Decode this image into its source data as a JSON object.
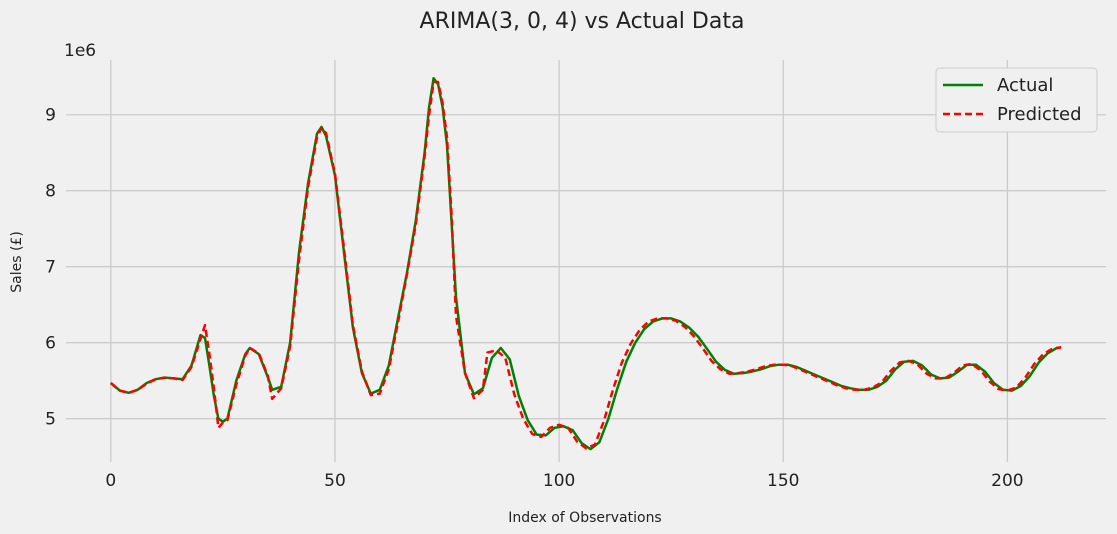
{
  "chart_data": {
    "type": "line",
    "title": "ARIMA(3, 0, 4) vs Actual Data",
    "xlabel": "Index of Observations",
    "ylabel": "Sales (£)",
    "offset_label": "1e6",
    "xlim": [
      -10,
      222
    ],
    "ylim": [
      4430000,
      9720000
    ],
    "xticks": [
      0,
      50,
      100,
      150,
      200
    ],
    "yticks": [
      5000000,
      6000000,
      7000000,
      8000000,
      9000000
    ],
    "ytick_labels": [
      "5",
      "6",
      "7",
      "8",
      "9"
    ],
    "grid": true,
    "legend": "top-right",
    "series": [
      {
        "name": "Actual",
        "color": "#008000",
        "style": "solid",
        "points": [
          [
            0,
            5470000
          ],
          [
            2,
            5370000
          ],
          [
            4,
            5340000
          ],
          [
            6,
            5380000
          ],
          [
            8,
            5470000
          ],
          [
            10,
            5520000
          ],
          [
            12,
            5540000
          ],
          [
            14,
            5530000
          ],
          [
            16,
            5520000
          ],
          [
            18,
            5700000
          ],
          [
            20,
            6100000
          ],
          [
            21,
            6060000
          ],
          [
            22,
            5700000
          ],
          [
            23,
            5300000
          ],
          [
            24,
            5000000
          ],
          [
            25,
            4960000
          ],
          [
            26,
            5000000
          ],
          [
            28,
            5500000
          ],
          [
            30,
            5850000
          ],
          [
            31,
            5930000
          ],
          [
            33,
            5850000
          ],
          [
            35,
            5550000
          ],
          [
            36,
            5380000
          ],
          [
            38,
            5420000
          ],
          [
            40,
            6000000
          ],
          [
            42,
            7200000
          ],
          [
            44,
            8100000
          ],
          [
            46,
            8750000
          ],
          [
            47,
            8840000
          ],
          [
            48,
            8720000
          ],
          [
            50,
            8200000
          ],
          [
            52,
            7200000
          ],
          [
            54,
            6200000
          ],
          [
            56,
            5600000
          ],
          [
            58,
            5330000
          ],
          [
            60,
            5380000
          ],
          [
            62,
            5700000
          ],
          [
            64,
            6300000
          ],
          [
            66,
            6900000
          ],
          [
            68,
            7600000
          ],
          [
            70,
            8500000
          ],
          [
            71,
            9100000
          ],
          [
            72,
            9480000
          ],
          [
            73,
            9400000
          ],
          [
            74,
            9100000
          ],
          [
            75,
            8600000
          ],
          [
            76,
            7600000
          ],
          [
            77,
            6600000
          ],
          [
            79,
            5600000
          ],
          [
            81,
            5320000
          ],
          [
            83,
            5400000
          ],
          [
            85,
            5800000
          ],
          [
            87,
            5930000
          ],
          [
            89,
            5780000
          ],
          [
            91,
            5300000
          ],
          [
            93,
            4980000
          ],
          [
            95,
            4790000
          ],
          [
            97,
            4780000
          ],
          [
            99,
            4880000
          ],
          [
            101,
            4900000
          ],
          [
            103,
            4850000
          ],
          [
            105,
            4680000
          ],
          [
            107,
            4600000
          ],
          [
            109,
            4690000
          ],
          [
            111,
            5000000
          ],
          [
            113,
            5400000
          ],
          [
            115,
            5750000
          ],
          [
            117,
            6000000
          ],
          [
            119,
            6180000
          ],
          [
            121,
            6280000
          ],
          [
            123,
            6320000
          ],
          [
            125,
            6320000
          ],
          [
            127,
            6280000
          ],
          [
            129,
            6200000
          ],
          [
            131,
            6080000
          ],
          [
            133,
            5920000
          ],
          [
            135,
            5750000
          ],
          [
            137,
            5640000
          ],
          [
            139,
            5590000
          ],
          [
            141,
            5600000
          ],
          [
            143,
            5620000
          ],
          [
            145,
            5650000
          ],
          [
            147,
            5690000
          ],
          [
            149,
            5710000
          ],
          [
            151,
            5710000
          ],
          [
            153,
            5680000
          ],
          [
            155,
            5630000
          ],
          [
            157,
            5580000
          ],
          [
            159,
            5530000
          ],
          [
            161,
            5480000
          ],
          [
            163,
            5430000
          ],
          [
            165,
            5400000
          ],
          [
            167,
            5380000
          ],
          [
            169,
            5380000
          ],
          [
            171,
            5420000
          ],
          [
            173,
            5500000
          ],
          [
            175,
            5650000
          ],
          [
            177,
            5750000
          ],
          [
            179,
            5760000
          ],
          [
            181,
            5700000
          ],
          [
            183,
            5580000
          ],
          [
            185,
            5530000
          ],
          [
            187,
            5540000
          ],
          [
            189,
            5620000
          ],
          [
            191,
            5710000
          ],
          [
            193,
            5710000
          ],
          [
            195,
            5620000
          ],
          [
            197,
            5470000
          ],
          [
            199,
            5380000
          ],
          [
            201,
            5370000
          ],
          [
            203,
            5430000
          ],
          [
            205,
            5560000
          ],
          [
            207,
            5740000
          ],
          [
            209,
            5860000
          ],
          [
            211,
            5930000
          ],
          [
            212,
            5940000
          ]
        ]
      },
      {
        "name": "Predicted",
        "color": "#ff0000",
        "style": "dashed",
        "points": [
          [
            0,
            5470000
          ],
          [
            2,
            5370000
          ],
          [
            4,
            5340000
          ],
          [
            6,
            5380000
          ],
          [
            8,
            5460000
          ],
          [
            10,
            5520000
          ],
          [
            12,
            5540000
          ],
          [
            14,
            5530000
          ],
          [
            16,
            5510000
          ],
          [
            18,
            5680000
          ],
          [
            20,
            6050000
          ],
          [
            21,
            6230000
          ],
          [
            22,
            5850000
          ],
          [
            23,
            5400000
          ],
          [
            24,
            4880000
          ],
          [
            25,
            4950000
          ],
          [
            26,
            4980000
          ],
          [
            28,
            5450000
          ],
          [
            30,
            5830000
          ],
          [
            31,
            5930000
          ],
          [
            33,
            5860000
          ],
          [
            35,
            5570000
          ],
          [
            36,
            5260000
          ],
          [
            38,
            5400000
          ],
          [
            40,
            5950000
          ],
          [
            42,
            7100000
          ],
          [
            44,
            8050000
          ],
          [
            46,
            8700000
          ],
          [
            47,
            8830000
          ],
          [
            48,
            8760000
          ],
          [
            50,
            8220000
          ],
          [
            52,
            7250000
          ],
          [
            54,
            6230000
          ],
          [
            56,
            5620000
          ],
          [
            58,
            5310000
          ],
          [
            60,
            5330000
          ],
          [
            62,
            5650000
          ],
          [
            64,
            6250000
          ],
          [
            66,
            6880000
          ],
          [
            68,
            7550000
          ],
          [
            70,
            8450000
          ],
          [
            71,
            9000000
          ],
          [
            72,
            9430000
          ],
          [
            73,
            9430000
          ],
          [
            74,
            9150000
          ],
          [
            75,
            8700000
          ],
          [
            76,
            7700000
          ],
          [
            77,
            6350000
          ],
          [
            79,
            5600000
          ],
          [
            81,
            5270000
          ],
          [
            83,
            5380000
          ],
          [
            84,
            5870000
          ],
          [
            86,
            5900000
          ],
          [
            88,
            5800000
          ],
          [
            90,
            5320000
          ],
          [
            92,
            5000000
          ],
          [
            94,
            4800000
          ],
          [
            96,
            4760000
          ],
          [
            98,
            4880000
          ],
          [
            100,
            4920000
          ],
          [
            102,
            4880000
          ],
          [
            104,
            4700000
          ],
          [
            106,
            4610000
          ],
          [
            108,
            4660000
          ],
          [
            110,
            4970000
          ],
          [
            112,
            5380000
          ],
          [
            114,
            5740000
          ],
          [
            116,
            5990000
          ],
          [
            118,
            6170000
          ],
          [
            120,
            6280000
          ],
          [
            122,
            6320000
          ],
          [
            124,
            6320000
          ],
          [
            126,
            6290000
          ],
          [
            128,
            6210000
          ],
          [
            130,
            6090000
          ],
          [
            132,
            5930000
          ],
          [
            134,
            5760000
          ],
          [
            136,
            5650000
          ],
          [
            138,
            5590000
          ],
          [
            140,
            5600000
          ],
          [
            142,
            5620000
          ],
          [
            144,
            5650000
          ],
          [
            146,
            5690000
          ],
          [
            148,
            5710000
          ],
          [
            150,
            5710000
          ],
          [
            152,
            5690000
          ],
          [
            154,
            5640000
          ],
          [
            156,
            5590000
          ],
          [
            158,
            5540000
          ],
          [
            160,
            5490000
          ],
          [
            162,
            5440000
          ],
          [
            164,
            5400000
          ],
          [
            166,
            5380000
          ],
          [
            168,
            5380000
          ],
          [
            170,
            5410000
          ],
          [
            172,
            5480000
          ],
          [
            174,
            5630000
          ],
          [
            176,
            5740000
          ],
          [
            178,
            5760000
          ],
          [
            180,
            5710000
          ],
          [
            182,
            5590000
          ],
          [
            184,
            5530000
          ],
          [
            186,
            5530000
          ],
          [
            188,
            5600000
          ],
          [
            190,
            5700000
          ],
          [
            192,
            5720000
          ],
          [
            194,
            5640000
          ],
          [
            196,
            5490000
          ],
          [
            198,
            5390000
          ],
          [
            200,
            5370000
          ],
          [
            202,
            5410000
          ],
          [
            204,
            5540000
          ],
          [
            206,
            5720000
          ],
          [
            208,
            5850000
          ],
          [
            210,
            5920000
          ],
          [
            212,
            5940000
          ]
        ]
      }
    ]
  }
}
